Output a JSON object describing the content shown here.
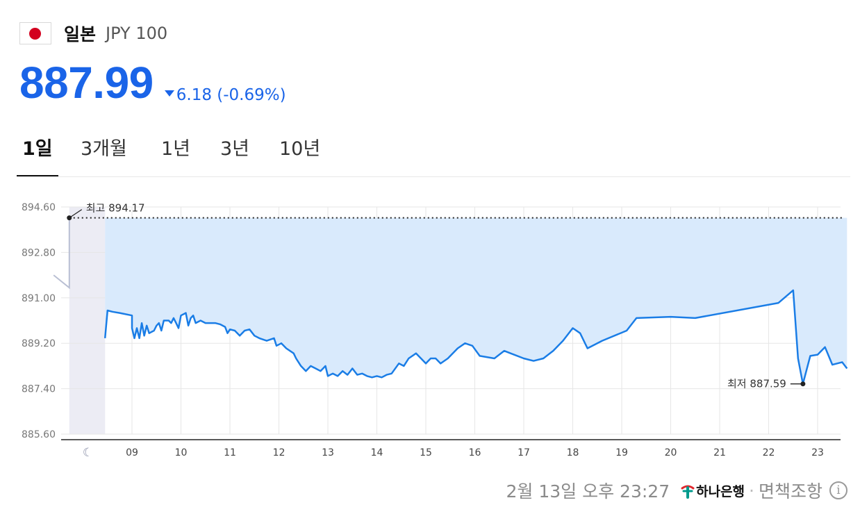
{
  "header": {
    "flag_icon": "japan-flag-icon",
    "country": "일본",
    "code": "JPY 100"
  },
  "quote": {
    "price": "887.99",
    "direction": "down",
    "change": "6.18 (-0.69%)",
    "color": "#1a64e8"
  },
  "tabs": [
    {
      "label": "1일",
      "active": true
    },
    {
      "label": "3개월",
      "active": false
    },
    {
      "label": "1년",
      "active": false
    },
    {
      "label": "3년",
      "active": false
    },
    {
      "label": "10년",
      "active": false
    }
  ],
  "chart_data": {
    "type": "area",
    "ylim": [
      885.6,
      894.6
    ],
    "yticks": [
      "894.60",
      "892.80",
      "891.00",
      "889.20",
      "887.40",
      "885.60"
    ],
    "xticks": [
      "09",
      "10",
      "11",
      "12",
      "13",
      "14",
      "15",
      "16",
      "17",
      "18",
      "19",
      "20",
      "21",
      "22",
      "23"
    ],
    "night_icon": "moon-icon",
    "line_color": "#1a7de6",
    "fill_color": "#d9eafc",
    "high": {
      "label": "최고 894.17",
      "value": 894.17
    },
    "low": {
      "label": "최저 887.59",
      "value": 887.59
    },
    "pre_session": [
      [
        7.4,
        891.9
      ],
      [
        7.72,
        891.4
      ],
      [
        7.72,
        894.17
      ]
    ],
    "series": [
      [
        8.45,
        889.4
      ],
      [
        8.5,
        890.5
      ],
      [
        8.6,
        890.45
      ],
      [
        8.75,
        890.4
      ],
      [
        9.0,
        890.3
      ],
      [
        9.0,
        889.8
      ],
      [
        9.05,
        889.4
      ],
      [
        9.1,
        889.8
      ],
      [
        9.15,
        889.4
      ],
      [
        9.2,
        890.0
      ],
      [
        9.25,
        889.5
      ],
      [
        9.3,
        889.9
      ],
      [
        9.35,
        889.6
      ],
      [
        9.45,
        889.7
      ],
      [
        9.5,
        889.9
      ],
      [
        9.55,
        890.0
      ],
      [
        9.6,
        889.7
      ],
      [
        9.65,
        890.1
      ],
      [
        9.75,
        890.1
      ],
      [
        9.8,
        890.0
      ],
      [
        9.85,
        890.2
      ],
      [
        9.9,
        890.0
      ],
      [
        9.95,
        889.8
      ],
      [
        10.0,
        890.3
      ],
      [
        10.1,
        890.4
      ],
      [
        10.15,
        889.9
      ],
      [
        10.2,
        890.2
      ],
      [
        10.25,
        890.3
      ],
      [
        10.3,
        890.0
      ],
      [
        10.4,
        890.1
      ],
      [
        10.5,
        890.0
      ],
      [
        10.6,
        890.0
      ],
      [
        10.7,
        890.0
      ],
      [
        10.8,
        889.95
      ],
      [
        10.9,
        889.85
      ],
      [
        10.95,
        889.6
      ],
      [
        11.0,
        889.75
      ],
      [
        11.1,
        889.7
      ],
      [
        11.2,
        889.5
      ],
      [
        11.3,
        889.7
      ],
      [
        11.4,
        889.75
      ],
      [
        11.5,
        889.5
      ],
      [
        11.6,
        889.4
      ],
      [
        11.75,
        889.3
      ],
      [
        11.9,
        889.4
      ],
      [
        11.95,
        889.1
      ],
      [
        12.05,
        889.2
      ],
      [
        12.15,
        889.0
      ],
      [
        12.3,
        888.8
      ],
      [
        12.35,
        888.6
      ],
      [
        12.45,
        888.3
      ],
      [
        12.55,
        888.1
      ],
      [
        12.65,
        888.3
      ],
      [
        12.75,
        888.2
      ],
      [
        12.85,
        888.1
      ],
      [
        12.95,
        888.3
      ],
      [
        13.0,
        887.9
      ],
      [
        13.1,
        888.0
      ],
      [
        13.2,
        887.9
      ],
      [
        13.3,
        888.1
      ],
      [
        13.4,
        887.95
      ],
      [
        13.5,
        888.2
      ],
      [
        13.6,
        887.95
      ],
      [
        13.7,
        888.0
      ],
      [
        13.8,
        887.9
      ],
      [
        13.9,
        887.85
      ],
      [
        14.0,
        887.9
      ],
      [
        14.1,
        887.85
      ],
      [
        14.2,
        887.95
      ],
      [
        14.3,
        888.0
      ],
      [
        14.45,
        888.4
      ],
      [
        14.55,
        888.3
      ],
      [
        14.65,
        888.6
      ],
      [
        14.8,
        888.8
      ],
      [
        14.9,
        888.6
      ],
      [
        15.0,
        888.4
      ],
      [
        15.1,
        888.6
      ],
      [
        15.2,
        888.6
      ],
      [
        15.3,
        888.4
      ],
      [
        15.45,
        888.6
      ],
      [
        15.65,
        889.0
      ],
      [
        15.8,
        889.2
      ],
      [
        15.95,
        889.1
      ],
      [
        16.1,
        888.7
      ],
      [
        16.4,
        888.6
      ],
      [
        16.6,
        888.9
      ],
      [
        16.8,
        888.75
      ],
      [
        17.0,
        888.6
      ],
      [
        17.2,
        888.5
      ],
      [
        17.4,
        888.6
      ],
      [
        17.6,
        888.9
      ],
      [
        17.8,
        889.3
      ],
      [
        18.0,
        889.8
      ],
      [
        18.15,
        889.6
      ],
      [
        18.3,
        889.0
      ],
      [
        18.6,
        889.3
      ],
      [
        19.1,
        889.7
      ],
      [
        19.3,
        890.2
      ],
      [
        20.0,
        890.25
      ],
      [
        20.5,
        890.2
      ],
      [
        22.2,
        890.8
      ],
      [
        22.5,
        891.3
      ],
      [
        22.6,
        888.6
      ],
      [
        22.7,
        887.59
      ],
      [
        22.85,
        888.7
      ],
      [
        23.0,
        888.75
      ],
      [
        23.15,
        889.05
      ],
      [
        23.3,
        888.35
      ],
      [
        23.5,
        888.45
      ],
      [
        23.6,
        888.2
      ]
    ]
  },
  "footer": {
    "timestamp": "2월 13일 오후 23:27",
    "bank_icon": "hana-bank-logo-icon",
    "bank": "하나은행",
    "separator": "·",
    "disclaimer": "면책조항",
    "info_icon": "info-icon",
    "info_glyph": "i"
  }
}
